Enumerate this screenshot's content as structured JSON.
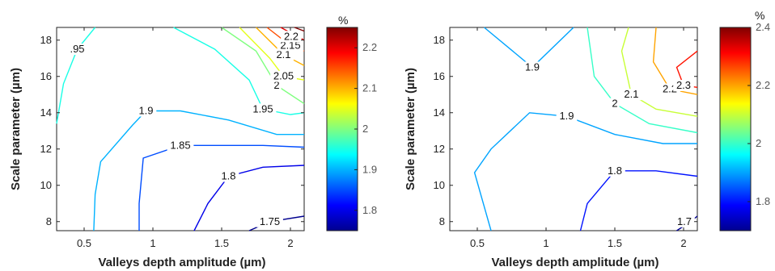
{
  "chart_data": [
    {
      "type": "contour",
      "xlabel": "Valleys depth amplitude (µm)",
      "ylabel": "Scale parameter (µm)",
      "xlim": [
        0.3,
        2.1
      ],
      "ylim": [
        7.5,
        18.7
      ],
      "xticks": [
        "0.5",
        "1",
        "1.5",
        "2"
      ],
      "yticks": [
        "8",
        "10",
        "12",
        "14",
        "16",
        "18"
      ],
      "colorbar": {
        "unit": "%",
        "range": [
          1.75,
          2.25
        ],
        "ticks": [
          "1.8",
          "1.9",
          "2",
          "2.1",
          "2.2"
        ]
      },
      "contours": [
        {
          "level": 1.75,
          "label": "1.75",
          "points": [
            [
              1.7,
              7.5
            ],
            [
              1.85,
              8.0
            ],
            [
              2.1,
              8.3
            ]
          ]
        },
        {
          "level": 1.8,
          "label": "1.8",
          "points": [
            [
              1.3,
              7.5
            ],
            [
              1.4,
              9.0
            ],
            [
              1.55,
              10.5
            ],
            [
              1.8,
              11.0
            ],
            [
              2.1,
              11.1
            ]
          ]
        },
        {
          "level": 1.85,
          "label": "1.85",
          "points": [
            [
              0.9,
              7.5
            ],
            [
              0.9,
              9.0
            ],
            [
              0.93,
              11.5
            ],
            [
              1.2,
              12.2
            ],
            [
              1.8,
              12.2
            ],
            [
              2.1,
              12.1
            ]
          ]
        },
        {
          "level": 1.9,
          "label": "1.9",
          "points": [
            [
              0.57,
              7.5
            ],
            [
              0.58,
              9.5
            ],
            [
              0.62,
              11.3
            ],
            [
              0.85,
              13.3
            ],
            [
              0.95,
              14.1
            ],
            [
              1.2,
              14.1
            ],
            [
              1.55,
              13.6
            ],
            [
              1.9,
              12.8
            ],
            [
              2.1,
              12.8
            ]
          ]
        },
        {
          "level": 1.95,
          "label": "1.95",
          "points": [
            [
              1.15,
              18.7
            ],
            [
              1.45,
              17.5
            ],
            [
              1.7,
              15.8
            ],
            [
              1.8,
              14.2
            ],
            [
              2.0,
              13.9
            ],
            [
              2.1,
              14.0
            ]
          ]
        },
        {
          "level": 2.0,
          "label": "2",
          "points": [
            [
              1.5,
              18.7
            ],
            [
              1.75,
              17.4
            ],
            [
              1.9,
              15.5
            ],
            [
              2.1,
              14.5
            ]
          ]
        },
        {
          "level": 2.05,
          "label": "2.05",
          "points": [
            [
              1.63,
              18.7
            ],
            [
              1.85,
              17.0
            ],
            [
              1.95,
              16.0
            ],
            [
              2.1,
              15.8
            ]
          ]
        },
        {
          "level": 2.1,
          "label": "2.1",
          "points": [
            [
              1.75,
              18.7
            ],
            [
              1.95,
              17.2
            ],
            [
              2.1,
              16.6
            ]
          ]
        },
        {
          "level": 2.15,
          "label": "2.15",
          "points": [
            [
              1.83,
              18.7
            ],
            [
              2.0,
              17.7
            ],
            [
              2.1,
              17.4
            ]
          ]
        },
        {
          "level": 2.2,
          "label": "2.2",
          "points": [
            [
              1.93,
              18.7
            ],
            [
              2.05,
              18.2
            ],
            [
              2.1,
              18.0
            ]
          ]
        },
        {
          "level": 2.25,
          "label": "",
          "points": [
            [
              2.03,
              18.7
            ],
            [
              2.1,
              18.5
            ]
          ]
        },
        {
          "level": 1.95,
          "label": ".95",
          "points": [
            [
              0.3,
              13.4
            ],
            [
              0.35,
              15.6
            ],
            [
              0.45,
              17.5
            ],
            [
              0.58,
              18.7
            ]
          ]
        }
      ]
    },
    {
      "type": "contour",
      "xlabel": "Valleys depth amplitude (µm)",
      "ylabel": "Scale parameter (µm)",
      "xlim": [
        0.3,
        2.1
      ],
      "ylim": [
        7.5,
        18.7
      ],
      "xticks": [
        "0.5",
        "1",
        "1.5",
        "2"
      ],
      "yticks": [
        "8",
        "10",
        "12",
        "14",
        "16",
        "18"
      ],
      "colorbar": {
        "unit": "%",
        "range": [
          1.7,
          2.4
        ],
        "ticks": [
          "1.8",
          "2",
          "2.2",
          "2.4"
        ]
      },
      "contours": [
        {
          "level": 1.7,
          "label": "1.7",
          "points": [
            [
              1.95,
              7.5
            ],
            [
              2.05,
              8.0
            ],
            [
              2.1,
              8.3
            ]
          ]
        },
        {
          "level": 1.8,
          "label": "1.8",
          "points": [
            [
              1.25,
              7.5
            ],
            [
              1.3,
              9.0
            ],
            [
              1.5,
              10.8
            ],
            [
              1.8,
              10.8
            ],
            [
              2.1,
              10.5
            ]
          ]
        },
        {
          "level": 1.9,
          "label": "1.9",
          "points": [
            [
              0.6,
              7.5
            ],
            [
              0.48,
              10.7
            ],
            [
              0.6,
              12.0
            ],
            [
              0.88,
              14.0
            ],
            [
              1.15,
              13.8
            ],
            [
              1.5,
              12.8
            ],
            [
              1.85,
              12.3
            ],
            [
              2.1,
              12.3
            ]
          ]
        },
        {
          "level": 1.9,
          "label": "1.9",
          "points": [
            [
              0.55,
              18.7
            ],
            [
              0.9,
              16.5
            ],
            [
              1.2,
              18.7
            ]
          ]
        },
        {
          "level": 2.0,
          "label": "2",
          "points": [
            [
              1.3,
              18.7
            ],
            [
              1.35,
              16.0
            ],
            [
              1.5,
              14.5
            ],
            [
              1.75,
              13.4
            ],
            [
              2.1,
              12.9
            ]
          ]
        },
        {
          "level": 2.1,
          "label": "2.1",
          "points": [
            [
              1.6,
              18.7
            ],
            [
              1.55,
              17.4
            ],
            [
              1.62,
              15.0
            ],
            [
              1.8,
              14.2
            ],
            [
              2.1,
              13.8
            ]
          ]
        },
        {
          "level": 2.2,
          "label": "2.2",
          "points": [
            [
              1.8,
              18.7
            ],
            [
              1.78,
              16.8
            ],
            [
              1.9,
              15.3
            ],
            [
              2.1,
              15.0
            ]
          ]
        },
        {
          "level": 2.3,
          "label": "2.3",
          "points": [
            [
              2.1,
              17.4
            ],
            [
              1.95,
              16.5
            ],
            [
              2.0,
              15.5
            ],
            [
              2.1,
              15.4
            ]
          ]
        }
      ]
    }
  ]
}
